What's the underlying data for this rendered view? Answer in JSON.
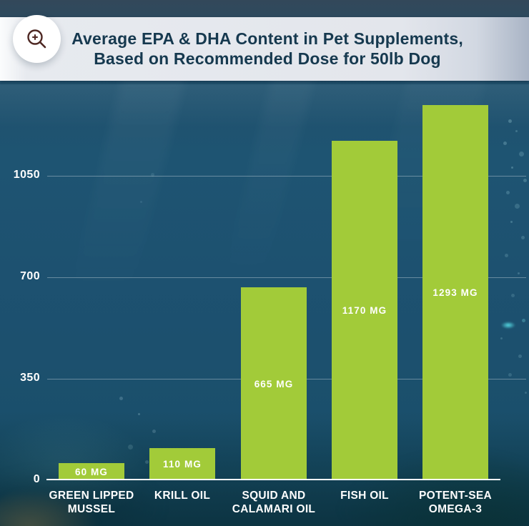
{
  "header": {
    "icon": "zoom-in-magnifier-icon",
    "title_line1": "Average EPA & DHA Content in Pet Supplements,",
    "title_line2": "Based on Recommended Dose for 50lb Dog",
    "title_color": "#16394f",
    "banner_color": "#e3e6ec",
    "icon_color": "#4e2823"
  },
  "chart_data": {
    "type": "bar",
    "title": "Average EPA & DHA Content in Pet Supplements, Based on Recommended Dose for 50lb Dog",
    "categories": [
      "Green Lipped Mussel",
      "Krill Oil",
      "Squid and Calamari Oil",
      "Fish Oil",
      "Potent-Sea Omega-3"
    ],
    "values": [
      60,
      110,
      665,
      1170,
      1293
    ],
    "value_labels": [
      "60 MG",
      "110 MG",
      "665 MG",
      "1170 MG",
      "1293 MG"
    ],
    "x_tick_lines": [
      [
        "GREEN LIPPED",
        "MUSSEL"
      ],
      [
        "KRILL OIL"
      ],
      [
        "SQUID AND",
        "CALAMARI OIL"
      ],
      [
        "FISH OIL"
      ],
      [
        "POTENT-SEA",
        "OMEGA-3"
      ]
    ],
    "y_ticks": [
      {
        "label": "0",
        "value": 0
      },
      {
        "label": "350",
        "value": 350
      },
      {
        "label": "700",
        "value": 700
      },
      {
        "label": "1050",
        "value": 1050
      }
    ],
    "unit": "mg",
    "xlabel": "",
    "ylabel": "",
    "ylim": [
      0,
      1380
    ],
    "grid": true,
    "legend": "none",
    "bar_color": "#a2cb39",
    "gridline_color": "rgba(255,255,255,0.33)",
    "axis_line_color": "#ffffff",
    "label_color": "#ffffff"
  }
}
